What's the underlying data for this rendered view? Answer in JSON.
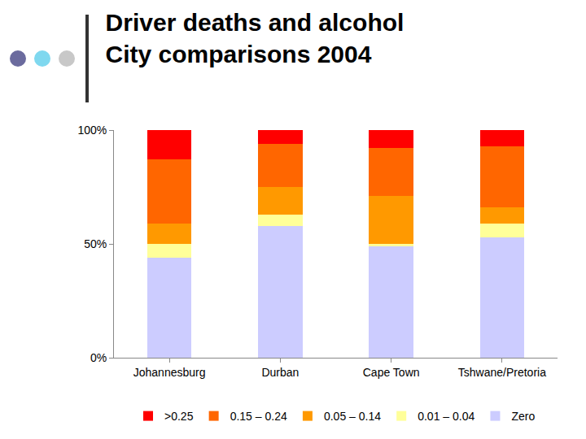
{
  "chart_data": {
    "type": "bar",
    "title": "Driver deaths and alcohol\nCity comparisons 2004",
    "categories": [
      "Johannesburg",
      "Durban",
      "Cape Town",
      "Tshwane/Pretoria"
    ],
    "series": [
      {
        "name": "Zero",
        "color": "#ccccff",
        "values": [
          44,
          58,
          49,
          53
        ]
      },
      {
        "name": "0.01 – 0.04",
        "color": "#ffff99",
        "values": [
          6,
          5,
          1,
          6
        ]
      },
      {
        "name": "0.05 – 0.14",
        "color": "#ff9900",
        "values": [
          9,
          12,
          21,
          7
        ]
      },
      {
        "name": "0.15 – 0.24",
        "color": "#ff6600",
        "values": [
          28,
          19,
          21,
          27
        ]
      },
      {
        "name": ">0.25",
        "color": "#ff0000",
        "values": [
          13,
          6,
          8,
          7
        ]
      }
    ],
    "ylim": [
      0,
      100
    ],
    "yticks": [
      {
        "value": 0,
        "label": "0%"
      },
      {
        "value": 50,
        "label": "50%"
      },
      {
        "value": 100,
        "label": "100%"
      }
    ],
    "stacked": true,
    "grid": false,
    "legend": "bottom"
  }
}
